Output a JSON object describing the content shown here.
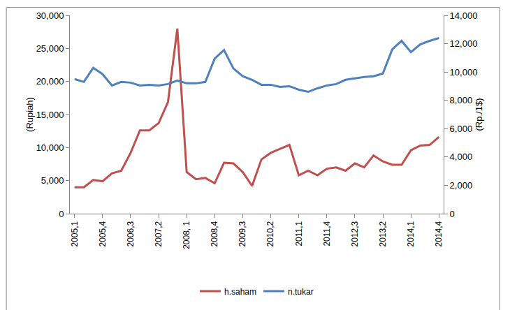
{
  "chart_data": {
    "type": "line",
    "categories": [
      "2005,1",
      null,
      null,
      "2005,4",
      null,
      null,
      "2006,3",
      null,
      null,
      "2007,2",
      null,
      null,
      "2008, 1",
      null,
      null,
      "2008,4",
      null,
      null,
      "2009,3",
      null,
      null,
      "2010,2",
      null,
      null,
      "2011,1",
      null,
      null,
      "2011,4",
      null,
      null,
      "2012,3",
      null,
      null,
      "2013,2",
      null,
      null,
      "2014,1",
      null,
      null,
      "2014,4"
    ],
    "y_label": "(Rupiah)",
    "y2_label": "(Rp./1$)",
    "ylim": [
      0,
      30000
    ],
    "yticks": [
      0,
      {
        "value": 5000,
        "label": "5,000"
      },
      {
        "value": 10000,
        "label": "10,000"
      },
      {
        "value": 15000,
        "label": "15,000"
      },
      {
        "value": 20000,
        "label": "20,000"
      },
      {
        "value": 25000,
        "label": "25,000"
      },
      {
        "value": 30000,
        "label": "30,000"
      }
    ],
    "y2lim": [
      0,
      14000
    ],
    "y2ticks": [
      0,
      {
        "value": 2000,
        "label": "2,000"
      },
      {
        "value": 4000,
        "label": "4,000"
      },
      {
        "value": 6000,
        "label": "6,000"
      },
      {
        "value": 8000,
        "label": "8,000"
      },
      {
        "value": 10000,
        "label": "10,000"
      },
      {
        "value": 12000,
        "label": "12,000"
      },
      {
        "value": 14000,
        "label": "14,000"
      }
    ],
    "grid": false,
    "legend": "bottom",
    "series": [
      {
        "name": "h.saham",
        "color": "#c0504d",
        "axis": "y",
        "values": [
          4000,
          4000,
          5100,
          4900,
          6100,
          6500,
          9200,
          12600,
          12600,
          13700,
          16900,
          28000,
          6300,
          5200,
          5400,
          4600,
          7700,
          7600,
          6300,
          4200,
          8200,
          9200,
          9800,
          10400,
          5800,
          6500,
          5800,
          6800,
          7000,
          6500,
          7600,
          7000,
          8800,
          7900,
          7400,
          7400,
          9600,
          10300,
          10400,
          11600
        ]
      },
      {
        "name": "n.tukar",
        "color": "#4f81bd",
        "axis": "y2",
        "values": [
          9500,
          9300,
          10300,
          9850,
          9050,
          9300,
          9250,
          9050,
          9100,
          9050,
          9150,
          9400,
          9200,
          9200,
          9300,
          10950,
          11550,
          10250,
          9700,
          9450,
          9100,
          9100,
          8950,
          9000,
          8750,
          8600,
          8850,
          9050,
          9150,
          9450,
          9550,
          9650,
          9700,
          9900,
          11600,
          12200,
          11400,
          11950,
          12200,
          12400
        ]
      }
    ]
  }
}
